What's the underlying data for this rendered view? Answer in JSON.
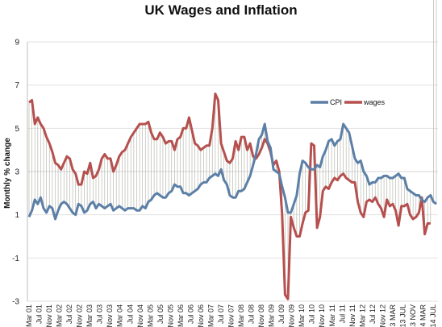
{
  "chart_data": {
    "type": "line",
    "title": "UK Wages and Inflation",
    "xlabel": "",
    "ylabel": "Monthly % change",
    "ylim": [
      -3,
      9
    ],
    "yticks": [
      -3,
      -1,
      1,
      3,
      5,
      7,
      9
    ],
    "grid": "horizontal",
    "legend_position": "right, upper middle",
    "x_tick_labels": [
      "Mar 01",
      "Jul 01",
      "Nov 01",
      "Mar 02",
      "Jul 02",
      "Nov 02",
      "Mar 03",
      "Jul 03",
      "Nov 03",
      "Mar 04",
      "Jul 04",
      "Nov 04",
      "Mar 05",
      "Jul 05",
      "Nov 05",
      "Mar 06",
      "Jul 06",
      "Nov 06",
      "Mar 07",
      "Jul 07",
      "Nov 07",
      "Mar 08",
      "Jul 08",
      "Nov 08",
      "Mar 09",
      "Jul 09",
      "Nov 09",
      "Mar 10",
      "Jul 10",
      "Nov 10",
      "Mar 11",
      "Jul 11",
      "Nov 11",
      "Mar 12",
      "Jul 12",
      "Nov 12",
      "2013 MAR",
      "2013 JUL",
      "2013 NOV",
      "2014 MAR",
      "2014 JUL"
    ],
    "series": [
      {
        "name": "CPI",
        "color": "#5b7fa6",
        "values": [
          0.9,
          1.2,
          1.7,
          1.5,
          1.8,
          1.3,
          1.1,
          1.4,
          1.3,
          0.8,
          1.2,
          1.5,
          1.6,
          1.5,
          1.3,
          1.1,
          1.0,
          1.5,
          1.4,
          1.1,
          1.2,
          1.5,
          1.6,
          1.3,
          1.5,
          1.4,
          1.3,
          1.4,
          1.5,
          1.2,
          1.3,
          1.4,
          1.3,
          1.2,
          1.3,
          1.3,
          1.3,
          1.2,
          1.2,
          1.4,
          1.3,
          1.6,
          1.7,
          1.9,
          2.0,
          1.9,
          1.8,
          1.8,
          2.0,
          2.1,
          2.4,
          2.3,
          2.3,
          2.0,
          2.0,
          1.9,
          2.0,
          2.1,
          2.2,
          2.4,
          2.5,
          2.5,
          2.7,
          2.8,
          2.9,
          2.8,
          3.1,
          2.6,
          2.4,
          1.9,
          1.8,
          1.8,
          2.1,
          2.1,
          2.2,
          2.5,
          2.8,
          3.3,
          3.8,
          4.5,
          4.7,
          5.2,
          4.4,
          4.1,
          3.1,
          3.0,
          2.9,
          2.3,
          1.8,
          1.1,
          1.1,
          1.5,
          1.9,
          2.9,
          3.5,
          3.4,
          3.2,
          3.1,
          3.1,
          3.3,
          3.2,
          3.7,
          4.0,
          4.4,
          4.5,
          4.2,
          4.4,
          4.5,
          5.2,
          5.0,
          4.8,
          4.2,
          3.6,
          3.4,
          3.5,
          3.0,
          2.8,
          2.4,
          2.5,
          2.5,
          2.7,
          2.7,
          2.8,
          2.8,
          2.7,
          2.7,
          2.8,
          2.9,
          2.7,
          2.7,
          2.2,
          2.1,
          2.0,
          1.9,
          1.9,
          1.7,
          1.6,
          1.8,
          1.9,
          1.6,
          1.5
        ]
      },
      {
        "name": "wages",
        "color": "#b5504e",
        "values": [
          6.2,
          6.3,
          5.2,
          5.5,
          5.2,
          5.0,
          4.6,
          4.3,
          3.9,
          3.4,
          3.3,
          3.1,
          3.4,
          3.7,
          3.6,
          3.1,
          2.9,
          2.4,
          2.4,
          3.0,
          2.9,
          3.4,
          2.7,
          2.8,
          3.1,
          3.6,
          3.8,
          3.6,
          3.6,
          3.0,
          3.3,
          3.7,
          3.9,
          4.0,
          4.3,
          4.6,
          4.8,
          5.0,
          5.2,
          5.2,
          5.2,
          5.3,
          4.8,
          4.5,
          4.5,
          4.8,
          4.6,
          4.3,
          4.4,
          4.4,
          4.0,
          4.5,
          4.6,
          5.0,
          5.0,
          5.5,
          4.9,
          4.3,
          4.2,
          4.0,
          4.1,
          4.2,
          4.2,
          5.0,
          6.6,
          6.3,
          4.3,
          3.9,
          3.5,
          3.4,
          3.6,
          4.4,
          4.0,
          4.6,
          4.6,
          4.0,
          4.3,
          3.7,
          3.6,
          3.8,
          4.1,
          4.5,
          4.3,
          3.9,
          3.3,
          3.5,
          3.0,
          1.0,
          -2.7,
          -2.9,
          0.9,
          0.4,
          0.0,
          0.0,
          0.6,
          1.1,
          1.2,
          4.3,
          4.2,
          0.4,
          0.9,
          2.1,
          2.3,
          2.2,
          2.5,
          2.7,
          2.6,
          2.8,
          2.9,
          2.7,
          2.6,
          2.5,
          2.5,
          1.6,
          1.1,
          0.9,
          1.6,
          1.7,
          1.6,
          1.8,
          1.5,
          1.3,
          0.9,
          1.7,
          1.4,
          1.5,
          1.2,
          0.5,
          1.4,
          1.4,
          1.5,
          1.0,
          0.8,
          0.9,
          1.1,
          1.8,
          0.1,
          0.6,
          0.6
        ]
      }
    ]
  }
}
